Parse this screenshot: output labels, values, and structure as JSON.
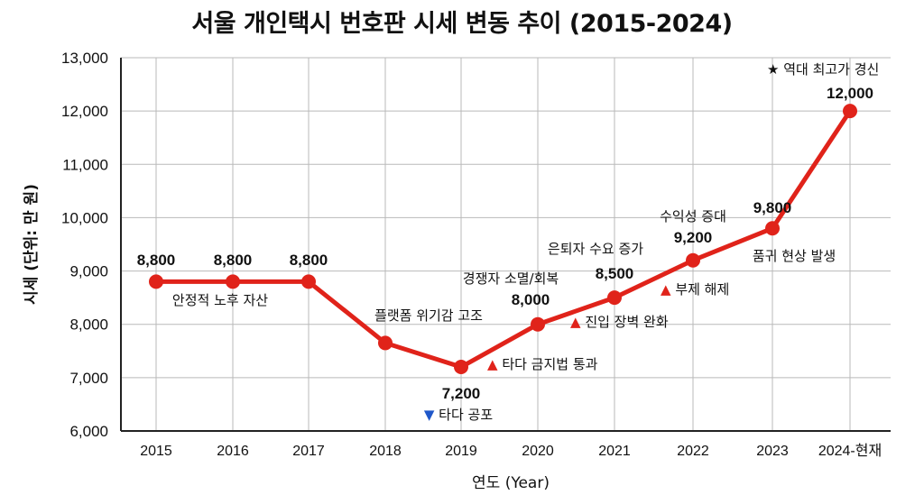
{
  "chart_data": {
    "type": "line",
    "title": "서울 개인택시 번호판 시세 변동 추이 (2015-2024)",
    "xlabel": "연도 (Year)",
    "ylabel": "시세 (단위: 만 원)",
    "ylim": [
      6000,
      13000
    ],
    "yticks": [
      6000,
      7000,
      8000,
      9000,
      10000,
      11000,
      12000,
      13000
    ],
    "ytick_labels": [
      "6,000",
      "7,000",
      "8,000",
      "9,000",
      "10,000",
      "11,000",
      "12,000",
      "13,000"
    ],
    "grid": true,
    "legend": null,
    "categories": [
      "2015",
      "2016",
      "2017",
      "2018",
      "2019",
      "2020",
      "2021",
      "2022",
      "2023",
      "2024-현재"
    ],
    "series": [
      {
        "name": "시세",
        "color": "#e0231a",
        "values": [
          8800,
          8800,
          8800,
          7650,
          7200,
          8000,
          8500,
          9200,
          9800,
          12000
        ]
      }
    ],
    "data_labels": [
      "8,800",
      "8,800",
      "8,800",
      "",
      "7,200",
      "8,000",
      "8,500",
      "9,200",
      "9,800",
      "12,000"
    ],
    "annotations": [
      {
        "text": "안정적 노후 자산",
        "marker": "",
        "near": "2016"
      },
      {
        "text": "플랫폼 위기감 고조",
        "marker": "",
        "near": "2018"
      },
      {
        "text": "타다 공포",
        "marker": "▼",
        "marker_color": "#1f57c9",
        "near": "2019"
      },
      {
        "text": "타다 금지법 통과",
        "marker": "▲",
        "marker_color": "#e0231a",
        "near": "2019-2020"
      },
      {
        "text": "경쟁자 소멸/회복",
        "marker": "",
        "near": "2020"
      },
      {
        "text": "진입 장벽 완화",
        "marker": "▲",
        "marker_color": "#e0231a",
        "near": "2020-2021"
      },
      {
        "text": "은퇴자 수요 증가",
        "marker": "",
        "near": "2021"
      },
      {
        "text": "부제 해제",
        "marker": "▲",
        "marker_color": "#e0231a",
        "near": "2021-2022"
      },
      {
        "text": "수익성 증대",
        "marker": "",
        "near": "2022"
      },
      {
        "text": "품귀 현상 발생",
        "marker": "",
        "near": "2023"
      },
      {
        "text": "역대 최고가 경신",
        "marker": "★",
        "marker_color": "#111111",
        "near": "2024-현재"
      }
    ]
  }
}
